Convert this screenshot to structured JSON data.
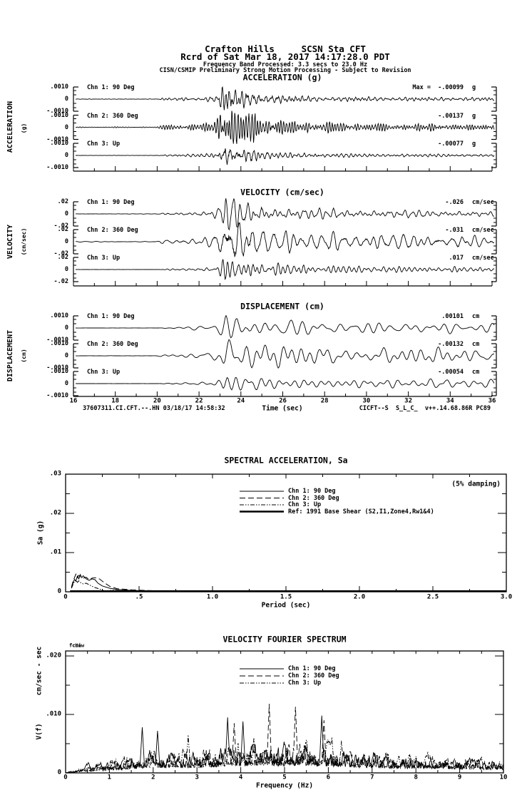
{
  "header": {
    "line1": "Crafton Hills     SCSN Sta CFT",
    "line2": "Rcrd of Sat Mar 18, 2017 14:17:28.0 PDT",
    "line3": "Frequency Band Processed: 3.3 secs to 23.0 Hz",
    "line4": "CISN/CSMIP Preliminary Strong Motion Processing - Subject to Revision"
  },
  "time_series": {
    "xlabel": "Time (sec)",
    "x_tick_labels": [
      "16",
      "18",
      "20",
      "22",
      "24",
      "26",
      "28",
      "30",
      "32",
      "34",
      "36"
    ],
    "x_range": [
      16,
      36
    ],
    "footer_left": "37607311.CI.CFT.--.HN 03/18/17 14:58:32",
    "footer_right": "CICFT--S  S_L_C_  v++.14.68.86R PC89",
    "panels": [
      {
        "id": "acceleration",
        "title": "ACCELERATION (g)",
        "side_label": "ACCELERATION",
        "side_unit": "(g)",
        "y_tick_labels": [
          ".0010",
          "0",
          "-.0010"
        ],
        "channels": [
          {
            "label": "Chn 1: 90 Deg",
            "peak_text": "Max =  -.00099",
            "unit": "g"
          },
          {
            "label": "Chn 2: 360 Deg",
            "peak_text": "-.00137",
            "unit": "g"
          },
          {
            "label": "Chn 3: Up",
            "peak_text": "-.00077",
            "unit": "g"
          }
        ]
      },
      {
        "id": "velocity",
        "title": "VELOCITY (cm/sec)",
        "side_label": "VELOCITY",
        "side_unit": "(cm/sec)",
        "y_tick_labels": [
          ".02",
          "0",
          "-.02"
        ],
        "channels": [
          {
            "label": "Chn 1: 90 Deg",
            "peak_text": "-.026",
            "unit": "cm/sec"
          },
          {
            "label": "Chn 2: 360 Deg",
            "peak_text": "-.031",
            "unit": "cm/sec"
          },
          {
            "label": "Chn 3: Up",
            "peak_text": ".017",
            "unit": "cm/sec"
          }
        ]
      },
      {
        "id": "displacement",
        "title": "DISPLACEMENT (cm)",
        "side_label": "DISPLACEMENT",
        "side_unit": "(cm)",
        "y_tick_labels": [
          ".0010",
          "0",
          "-.0010"
        ],
        "channels": [
          {
            "label": "Chn 1: 90 Deg",
            "peak_text": ".00101",
            "unit": "cm"
          },
          {
            "label": "Chn 2: 360 Deg",
            "peak_text": "-.00132",
            "unit": "cm"
          },
          {
            "label": "Chn 3: Up",
            "peak_text": "-.00054",
            "unit": "cm"
          }
        ]
      }
    ]
  },
  "sa": {
    "title": "SPECTRAL ACCELERATION, Sa",
    "damping_note": "(5% damping)",
    "ylabel": "Sa (g)",
    "xlabel": "Period (sec)",
    "y_tick_labels": [
      "0",
      ".01",
      ".02",
      ".03"
    ],
    "x_tick_labels": [
      "0",
      ".5",
      "1.0",
      "1.5",
      "2.0",
      "2.5",
      "3.0"
    ],
    "x_tick_values": [
      0,
      0.5,
      1.0,
      1.5,
      2.0,
      2.5,
      3.0
    ],
    "legend": [
      {
        "label": "Chn 1: 90 Deg",
        "style": "solid"
      },
      {
        "label": "Chn 2: 360 Deg",
        "style": "dash"
      },
      {
        "label": "Chn 3: Up",
        "style": "dashdot"
      },
      {
        "label": "Ref: 1991 Base Shear (S2,I1,Zone4,Rw1&4)",
        "style": "thick"
      }
    ]
  },
  "fourier": {
    "title": "VELOCITY FOURIER SPECTRUM",
    "ylabel_line1": "cm/sec - sec",
    "ylabel_line2": "V(f)",
    "xlabel": "Frequency (Hz)",
    "y_tick_labels": [
      "0",
      ".010",
      ".020"
    ],
    "x_tick_labels": [
      "0",
      "1",
      "2",
      "3",
      "4",
      "5",
      "6",
      "7",
      "8",
      "9",
      "10"
    ],
    "x_tick_values": [
      0,
      1,
      2,
      3,
      4,
      5,
      6,
      7,
      8,
      9,
      10
    ],
    "corner_labels": [
      "fcLow",
      "fcHi"
    ],
    "legend": [
      {
        "label": "Chn 1: 90 Deg",
        "style": "solid"
      },
      {
        "label": "Chn 2: 360 Deg",
        "style": "dash"
      },
      {
        "label": "Chn 3: Up",
        "style": "dashdot"
      }
    ]
  },
  "chart_data": [
    {
      "type": "line",
      "id": "acceleration_time_series",
      "title": "ACCELERATION (g)",
      "xlabel": "Time (sec)",
      "x_range": [
        16,
        36
      ],
      "y_tick": 0.001,
      "units": "g",
      "channels": [
        {
          "name": "Chn 1: 90 Deg",
          "peak": -0.00099
        },
        {
          "name": "Chn 2: 360 Deg",
          "peak": -0.00137
        },
        {
          "name": "Chn 3: Up",
          "peak": -0.00077
        }
      ],
      "synthesis": {
        "seeds": [
          101,
          102,
          103
        ],
        "band_hz": [
          2.5,
          9.5
        ],
        "white_noise": 0.45,
        "envelope": [
          [
            16,
            0.015
          ],
          [
            19.9,
            0.015
          ],
          [
            20.1,
            0.07
          ],
          [
            21,
            0.1
          ],
          [
            22,
            0.13
          ],
          [
            22.7,
            0.22
          ],
          [
            22.95,
            0.6
          ],
          [
            23.15,
            1.0
          ],
          [
            23.5,
            0.8
          ],
          [
            23.9,
            0.5
          ],
          [
            24.4,
            0.6
          ],
          [
            24.9,
            0.33
          ],
          [
            25.6,
            0.27
          ],
          [
            26.5,
            0.22
          ],
          [
            28,
            0.18
          ],
          [
            30,
            0.15
          ],
          [
            32,
            0.13
          ],
          [
            34,
            0.12
          ],
          [
            36,
            0.11
          ]
        ]
      },
      "note": "quiet to ~20 s, weak arrivals 20-22.8 s, main burst peaking ~23.2 s, decaying coda to 36 s"
    },
    {
      "type": "line",
      "id": "velocity_time_series",
      "title": "VELOCITY (cm/sec)",
      "xlabel": "Time (sec)",
      "x_range": [
        16,
        36
      ],
      "y_tick": 0.02,
      "units": "cm/sec",
      "channels": [
        {
          "name": "Chn 1: 90 Deg",
          "peak": -0.026
        },
        {
          "name": "Chn 2: 360 Deg",
          "peak": -0.031
        },
        {
          "name": "Chn 3: Up",
          "peak": 0.017
        }
      ],
      "synthesis": {
        "seeds": [
          201,
          202,
          203
        ],
        "band_hz": [
          1.3,
          5.0
        ],
        "white_noise": 0.2,
        "envelope": [
          [
            16,
            0.01
          ],
          [
            19.9,
            0.01
          ],
          [
            20.2,
            0.06
          ],
          [
            21,
            0.09
          ],
          [
            22,
            0.12
          ],
          [
            22.7,
            0.25
          ],
          [
            23.0,
            0.7
          ],
          [
            23.2,
            1.0
          ],
          [
            23.6,
            0.85
          ],
          [
            24.1,
            0.6
          ],
          [
            24.7,
            0.55
          ],
          [
            25.4,
            0.4
          ],
          [
            26.5,
            0.33
          ],
          [
            28,
            0.28
          ],
          [
            30,
            0.24
          ],
          [
            32,
            0.22
          ],
          [
            34,
            0.2
          ],
          [
            36,
            0.18
          ]
        ]
      },
      "note": "main burst ~23-24.5 s with oscillatory coda to 36 s"
    },
    {
      "type": "line",
      "id": "displacement_time_series",
      "title": "DISPLACEMENT (cm)",
      "xlabel": "Time (sec)",
      "x_range": [
        16,
        36
      ],
      "y_tick": 0.001,
      "units": "cm",
      "channels": [
        {
          "name": "Chn 1: 90 Deg",
          "peak": 0.00101
        },
        {
          "name": "Chn 2: 360 Deg",
          "peak": -0.00132
        },
        {
          "name": "Chn 3: Up",
          "peak": -0.00054
        }
      ],
      "synthesis": {
        "seeds": [
          301,
          302,
          303
        ],
        "band_hz": [
          0.7,
          2.6
        ],
        "white_noise": 0.06,
        "envelope": [
          [
            16,
            0.006
          ],
          [
            19.9,
            0.006
          ],
          [
            20.3,
            0.05
          ],
          [
            21.5,
            0.09
          ],
          [
            22.5,
            0.15
          ],
          [
            22.9,
            0.45
          ],
          [
            23.2,
            1.0
          ],
          [
            23.6,
            0.8
          ],
          [
            24.2,
            0.6
          ],
          [
            24.8,
            0.55
          ],
          [
            25.6,
            0.45
          ],
          [
            27,
            0.4
          ],
          [
            28.5,
            0.36
          ],
          [
            30,
            0.33
          ],
          [
            32,
            0.3
          ],
          [
            34,
            0.28
          ],
          [
            36,
            0.26
          ]
        ]
      },
      "note": "long-period oscillation after ~23 s persisting to end of record"
    },
    {
      "type": "line",
      "id": "spectral_acceleration",
      "title": "SPECTRAL ACCELERATION, Sa",
      "damping": "5%",
      "xlabel": "Period (sec)",
      "ylabel": "Sa (g)",
      "xlim": [
        0,
        3.0
      ],
      "ylim": [
        0,
        0.03
      ],
      "series": [
        {
          "name": "Chn 1: 90 Deg",
          "points": [
            [
              0.04,
              0.001
            ],
            [
              0.05,
              0.0022
            ],
            [
              0.06,
              0.0032
            ],
            [
              0.07,
              0.0027
            ],
            [
              0.08,
              0.004
            ],
            [
              0.09,
              0.0033
            ],
            [
              0.1,
              0.0044
            ],
            [
              0.11,
              0.0036
            ],
            [
              0.12,
              0.0041
            ],
            [
              0.14,
              0.0033
            ],
            [
              0.16,
              0.0029
            ],
            [
              0.18,
              0.0033
            ],
            [
              0.2,
              0.0031
            ],
            [
              0.22,
              0.0022
            ],
            [
              0.25,
              0.0015
            ],
            [
              0.3,
              0.0009
            ],
            [
              0.35,
              0.0006
            ],
            [
              0.45,
              0.00035
            ],
            [
              0.55,
              0.00022
            ],
            [
              0.7,
              0.00013
            ],
            [
              0.9,
              8e-05
            ],
            [
              1.2,
              6e-05
            ],
            [
              1.6,
              5e-05
            ],
            [
              2.2,
              4e-05
            ],
            [
              3.0,
              3e-05
            ]
          ]
        },
        {
          "name": "Chn 2: 360 Deg",
          "points": [
            [
              0.04,
              0.0012
            ],
            [
              0.05,
              0.0026
            ],
            [
              0.06,
              0.0036
            ],
            [
              0.07,
              0.0045
            ],
            [
              0.08,
              0.0036
            ],
            [
              0.09,
              0.0042
            ],
            [
              0.1,
              0.0038
            ],
            [
              0.12,
              0.0035
            ],
            [
              0.14,
              0.0037
            ],
            [
              0.16,
              0.0031
            ],
            [
              0.18,
              0.0035
            ],
            [
              0.2,
              0.0036
            ],
            [
              0.23,
              0.0033
            ],
            [
              0.26,
              0.0024
            ],
            [
              0.3,
              0.0014
            ],
            [
              0.35,
              0.0008
            ],
            [
              0.45,
              0.0005
            ],
            [
              0.6,
              0.00025
            ],
            [
              0.8,
              0.00012
            ],
            [
              1.1,
              8e-05
            ],
            [
              1.5,
              6e-05
            ],
            [
              2.0,
              5e-05
            ],
            [
              3.0,
              4e-05
            ]
          ]
        },
        {
          "name": "Chn 3: Up",
          "points": [
            [
              0.04,
              0.0009
            ],
            [
              0.05,
              0.0018
            ],
            [
              0.06,
              0.0026
            ],
            [
              0.07,
              0.003
            ],
            [
              0.08,
              0.0024
            ],
            [
              0.09,
              0.0028
            ],
            [
              0.1,
              0.0024
            ],
            [
              0.12,
              0.002
            ],
            [
              0.14,
              0.0022
            ],
            [
              0.16,
              0.0018
            ],
            [
              0.18,
              0.0014
            ],
            [
              0.2,
              0.0011
            ],
            [
              0.24,
              0.0006
            ],
            [
              0.27,
              0.0002
            ],
            [
              0.32,
              0.0004
            ],
            [
              0.38,
              0.0003
            ],
            [
              0.5,
              0.0002
            ],
            [
              0.7,
              0.0001
            ],
            [
              1.0,
              6e-05
            ],
            [
              1.5,
              4e-05
            ],
            [
              2.2,
              3e-05
            ],
            [
              3.0,
              3e-05
            ]
          ]
        },
        {
          "name": "Ref: 1991 Base Shear (S2,I1,Zone4,Rw1&4)",
          "points": [
            [
              0.03,
              0.00015
            ],
            [
              3.0,
              0.00015
            ]
          ]
        }
      ]
    },
    {
      "type": "line",
      "id": "velocity_fourier_spectrum",
      "title": "VELOCITY FOURIER SPECTRUM",
      "xlabel": "Frequency (Hz)",
      "ylabel": "V(f) cm/sec - sec",
      "xlim": [
        0,
        10
      ],
      "ylim": [
        0,
        0.02
      ],
      "series": [
        {
          "name": "Chn 1: 90 Deg",
          "seed": 401,
          "spikes": [
            [
              1.75,
              0.0078
            ],
            [
              2.1,
              0.0072
            ],
            [
              3.7,
              0.0095
            ],
            [
              4.05,
              0.0088
            ],
            [
              5.85,
              0.0098
            ]
          ]
        },
        {
          "name": "Chn 2: 360 Deg",
          "seed": 402,
          "spikes": [
            [
              3.85,
              0.0085
            ],
            [
              4.65,
              0.0118
            ],
            [
              5.25,
              0.0113
            ],
            [
              5.9,
              0.009
            ]
          ]
        },
        {
          "name": "Chn 3: Up",
          "seed": 403,
          "spikes": [
            [
              2.8,
              0.0065
            ],
            [
              4.3,
              0.006
            ],
            [
              6.3,
              0.0055
            ]
          ]
        }
      ],
      "envelope": [
        [
          0,
          0
        ],
        [
          0.15,
          0.0004
        ],
        [
          0.5,
          0.0012
        ],
        [
          1.0,
          0.002
        ],
        [
          1.5,
          0.003
        ],
        [
          2.0,
          0.0038
        ],
        [
          2.5,
          0.0036
        ],
        [
          3.0,
          0.0038
        ],
        [
          3.5,
          0.0045
        ],
        [
          4.0,
          0.005
        ],
        [
          4.5,
          0.0052
        ],
        [
          5.0,
          0.0052
        ],
        [
          5.5,
          0.0055
        ],
        [
          6.0,
          0.005
        ],
        [
          6.5,
          0.004
        ],
        [
          7.0,
          0.0038
        ],
        [
          7.5,
          0.0034
        ],
        [
          8.0,
          0.0032
        ],
        [
          8.5,
          0.003
        ],
        [
          9.0,
          0.0028
        ],
        [
          9.5,
          0.0026
        ],
        [
          10,
          0.0024
        ]
      ],
      "note": "broadband noisy spectra, largest amplitudes ~0.010-0.012 between 3.5 and 6 Hz"
    }
  ]
}
